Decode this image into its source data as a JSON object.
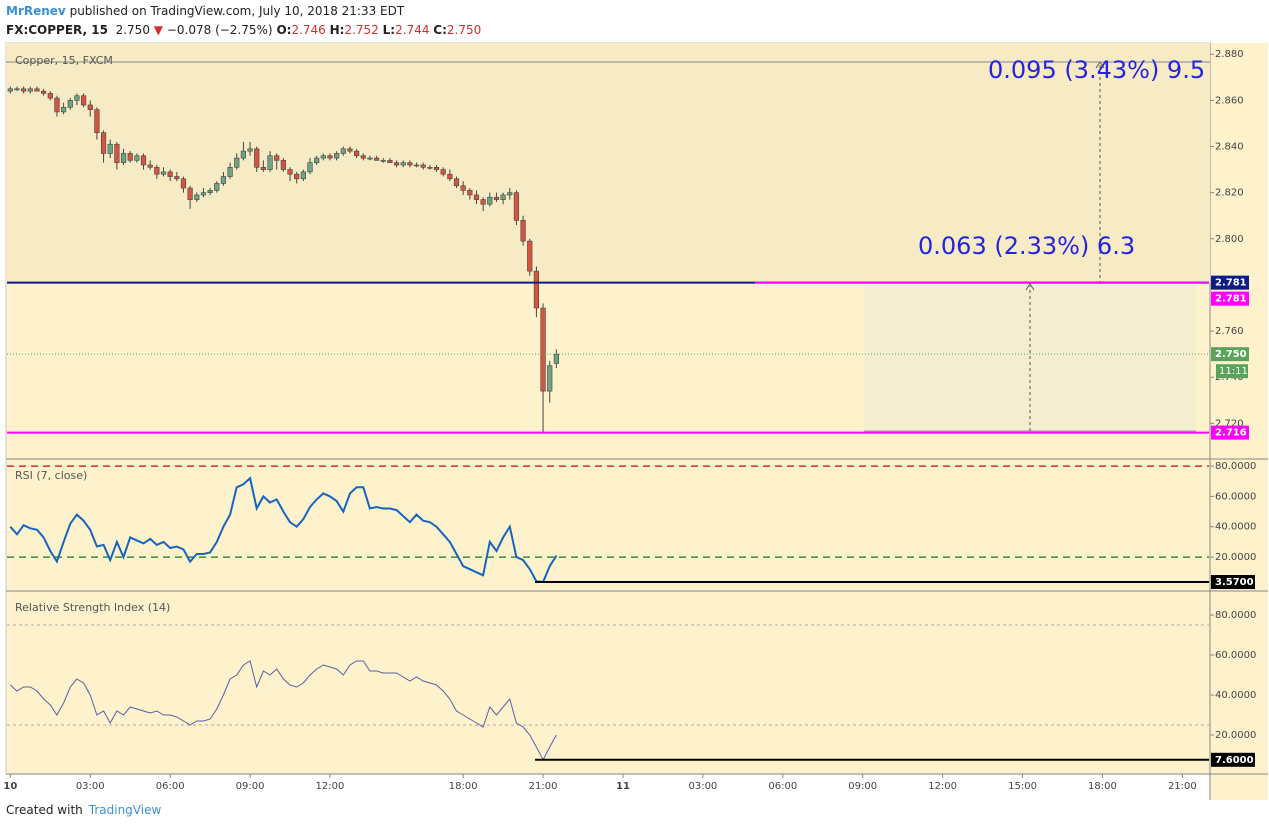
{
  "header": {
    "author": "MrRenev",
    "published": "published on TradingView.com, July 10, 2018 21:33 EDT",
    "symbol": "FX:COPPER, 15",
    "last": "2.750",
    "arrow": "▼",
    "change": "−0.078 (−2.75%)",
    "ohlc": [
      {
        "key": "O:",
        "value": "2.746"
      },
      {
        "key": "H:",
        "value": "2.752"
      },
      {
        "key": "L:",
        "value": "2.744"
      },
      {
        "key": "C:",
        "value": "2.750"
      }
    ]
  },
  "footer": {
    "created": "Created with",
    "brand": "TradingView"
  },
  "chart_data": [
    {
      "type": "candlestick",
      "title": "Copper, 15, FXCM",
      "up_color": "#6ba583",
      "down_color": "#d75442",
      "xlim": [
        -0.5,
        180
      ],
      "ylim": [
        2.705,
        2.884
      ],
      "yticks": [
        {
          "value": 2.72,
          "label": "2.720"
        },
        {
          "value": 2.74,
          "label": "2.740"
        },
        {
          "value": 2.76,
          "label": "2.760"
        },
        {
          "value": 2.78,
          "label": "2.780"
        },
        {
          "value": 2.8,
          "label": "2.800"
        },
        {
          "value": 2.82,
          "label": "2.820"
        },
        {
          "value": 2.84,
          "label": "2.840"
        },
        {
          "value": 2.86,
          "label": "2.860"
        },
        {
          "value": 2.88,
          "label": "2.880"
        }
      ],
      "levels": [
        {
          "value": 2.781,
          "label": "2.781",
          "color": "#0d1a8c"
        },
        {
          "value": 2.781,
          "label": "2.781",
          "color": "#ff00ff"
        },
        {
          "value": 2.75,
          "label": "2.750",
          "color": "#5ba35b"
        },
        {
          "value": 2.716,
          "label": "2.716",
          "color": "#ff00ff"
        }
      ],
      "countdown": "11:11",
      "annotations": [
        "0.063 (2.33%) 6.3",
        "0.095 (3.43%) 9.5"
      ],
      "ohlc": [
        [
          2.864,
          2.866,
          2.863,
          2.865
        ],
        [
          2.865,
          2.866,
          2.864,
          2.865
        ],
        [
          2.865,
          2.866,
          2.863,
          2.864
        ],
        [
          2.864,
          2.866,
          2.863,
          2.865
        ],
        [
          2.865,
          2.866,
          2.864,
          2.864
        ],
        [
          2.864,
          2.865,
          2.862,
          2.863
        ],
        [
          2.863,
          2.864,
          2.86,
          2.861
        ],
        [
          2.861,
          2.862,
          2.853,
          2.855
        ],
        [
          2.855,
          2.859,
          2.854,
          2.857
        ],
        [
          2.857,
          2.861,
          2.856,
          2.86
        ],
        [
          2.86,
          2.863,
          2.858,
          2.862
        ],
        [
          2.862,
          2.863,
          2.857,
          2.858
        ],
        [
          2.858,
          2.86,
          2.853,
          2.856
        ],
        [
          2.856,
          2.857,
          2.843,
          2.846
        ],
        [
          2.846,
          2.847,
          2.833,
          2.837
        ],
        [
          2.837,
          2.843,
          2.835,
          2.841
        ],
        [
          2.841,
          2.842,
          2.83,
          2.833
        ],
        [
          2.833,
          2.839,
          2.832,
          2.837
        ],
        [
          2.837,
          2.838,
          2.833,
          2.834
        ],
        [
          2.834,
          2.837,
          2.833,
          2.836
        ],
        [
          2.836,
          2.837,
          2.83,
          2.832
        ],
        [
          2.832,
          2.834,
          2.83,
          2.831
        ],
        [
          2.831,
          2.832,
          2.826,
          2.828
        ],
        [
          2.828,
          2.831,
          2.827,
          2.829
        ],
        [
          2.829,
          2.83,
          2.825,
          2.827
        ],
        [
          2.827,
          2.829,
          2.825,
          2.826
        ],
        [
          2.826,
          2.827,
          2.82,
          2.822
        ],
        [
          2.822,
          2.823,
          2.813,
          2.817
        ],
        [
          2.817,
          2.82,
          2.816,
          2.819
        ],
        [
          2.819,
          2.822,
          2.818,
          2.82
        ],
        [
          2.82,
          2.822,
          2.819,
          2.821
        ],
        [
          2.821,
          2.825,
          2.82,
          2.824
        ],
        [
          2.824,
          2.829,
          2.823,
          2.827
        ],
        [
          2.827,
          2.833,
          2.826,
          2.831
        ],
        [
          2.831,
          2.837,
          2.83,
          2.835
        ],
        [
          2.835,
          2.842,
          2.834,
          2.838
        ],
        [
          2.838,
          2.842,
          2.836,
          2.839
        ],
        [
          2.839,
          2.84,
          2.829,
          2.831
        ],
        [
          2.831,
          2.834,
          2.829,
          2.83
        ],
        [
          2.83,
          2.838,
          2.829,
          2.836
        ],
        [
          2.836,
          2.837,
          2.83,
          2.834
        ],
        [
          2.834,
          2.835,
          2.829,
          2.83
        ],
        [
          2.83,
          2.831,
          2.825,
          2.828
        ],
        [
          2.828,
          2.829,
          2.824,
          2.826
        ],
        [
          2.826,
          2.83,
          2.825,
          2.829
        ],
        [
          2.829,
          2.835,
          2.828,
          2.833
        ],
        [
          2.833,
          2.836,
          2.832,
          2.835
        ],
        [
          2.835,
          2.837,
          2.834,
          2.836
        ],
        [
          2.836,
          2.837,
          2.834,
          2.835
        ],
        [
          2.835,
          2.838,
          2.834,
          2.837
        ],
        [
          2.837,
          2.84,
          2.836,
          2.839
        ],
        [
          2.839,
          2.84,
          2.837,
          2.838
        ],
        [
          2.838,
          2.839,
          2.835,
          2.836
        ],
        [
          2.836,
          2.837,
          2.834,
          2.835
        ],
        [
          2.835,
          2.836,
          2.834,
          2.835
        ],
        [
          2.835,
          2.836,
          2.834,
          2.834
        ],
        [
          2.834,
          2.835,
          2.833,
          2.834
        ],
        [
          2.834,
          2.835,
          2.833,
          2.833
        ],
        [
          2.833,
          2.834,
          2.831,
          2.832
        ],
        [
          2.832,
          2.834,
          2.831,
          2.833
        ],
        [
          2.833,
          2.834,
          2.831,
          2.832
        ],
        [
          2.832,
          2.833,
          2.831,
          2.832
        ],
        [
          2.832,
          2.833,
          2.83,
          2.831
        ],
        [
          2.831,
          2.832,
          2.83,
          2.831
        ],
        [
          2.831,
          2.832,
          2.829,
          2.83
        ],
        [
          2.83,
          2.831,
          2.827,
          2.828
        ],
        [
          2.828,
          2.83,
          2.825,
          2.826
        ],
        [
          2.826,
          2.827,
          2.822,
          2.823
        ],
        [
          2.823,
          2.825,
          2.819,
          2.821
        ],
        [
          2.821,
          2.822,
          2.817,
          2.819
        ],
        [
          2.819,
          2.821,
          2.815,
          2.817
        ],
        [
          2.817,
          2.818,
          2.812,
          2.815
        ],
        [
          2.815,
          2.82,
          2.814,
          2.818
        ],
        [
          2.818,
          2.82,
          2.816,
          2.817
        ],
        [
          2.817,
          2.82,
          2.815,
          2.819
        ],
        [
          2.819,
          2.822,
          2.817,
          2.82
        ],
        [
          2.82,
          2.821,
          2.806,
          2.808
        ],
        [
          2.808,
          2.81,
          2.797,
          2.799
        ],
        [
          2.799,
          2.8,
          2.784,
          2.786
        ],
        [
          2.786,
          2.788,
          2.766,
          2.77
        ],
        [
          2.77,
          2.772,
          2.716,
          2.734
        ],
        [
          2.734,
          2.747,
          2.729,
          2.745
        ],
        [
          2.746,
          2.752,
          2.744,
          2.75
        ]
      ]
    },
    {
      "type": "line",
      "title": "RSI (7, close)",
      "color": "#1565c0",
      "xlim": [
        -0.5,
        180
      ],
      "ylim": [
        -1.7,
        84
      ],
      "yticks": [
        {
          "value": 20,
          "label": "20.0000"
        },
        {
          "value": 40,
          "label": "40.0000"
        },
        {
          "value": 60,
          "label": "60.0000"
        },
        {
          "value": 80,
          "label": "80.0000"
        }
      ],
      "bands": [
        {
          "value": 80,
          "color": "#d32f2f"
        },
        {
          "value": 20,
          "color": "#388e3c"
        }
      ],
      "marker": {
        "value": 3.57,
        "label": "3.5700"
      },
      "values": [
        40,
        35,
        41,
        39,
        38,
        33,
        24,
        17,
        30,
        42,
        48,
        44,
        38,
        27,
        28,
        18,
        30,
        20,
        33,
        31,
        29,
        32,
        28,
        30,
        26,
        27,
        25,
        17,
        22,
        22,
        23,
        30,
        40,
        48,
        66,
        68,
        72,
        52,
        60,
        56,
        58,
        50,
        43,
        40,
        45,
        53,
        58,
        62,
        60,
        57,
        50,
        62,
        66,
        66,
        52,
        53,
        52,
        52,
        51,
        47,
        43,
        48,
        44,
        43,
        40,
        35,
        30,
        22,
        14,
        12,
        10,
        8,
        30,
        24,
        33,
        40,
        20,
        18,
        12,
        4,
        3.57,
        14,
        21
      ]
    },
    {
      "type": "line",
      "title": "Relative Strength Index (14)",
      "color": "#5b5fa8",
      "xlim": [
        -0.5,
        180
      ],
      "ylim": [
        1,
        91.5
      ],
      "yticks": [
        {
          "value": 20,
          "label": "20.0000"
        },
        {
          "value": 40,
          "label": "40.0000"
        },
        {
          "value": 60,
          "label": "60.0000"
        },
        {
          "value": 80,
          "label": "80.0000"
        }
      ],
      "bands": [
        {
          "value": 75,
          "color": "#aaaaaa"
        },
        {
          "value": 25,
          "color": "#aaaaaa"
        }
      ],
      "marker": {
        "value": 7.6,
        "label": "7.6000"
      },
      "values": [
        45,
        42,
        44,
        44,
        42,
        38,
        35,
        30,
        36,
        44,
        48,
        46,
        40,
        30,
        32,
        26,
        32,
        30,
        34,
        33,
        32,
        31,
        32,
        30,
        30,
        29,
        27,
        25,
        27,
        27,
        28,
        33,
        40,
        48,
        50,
        55,
        57,
        44,
        52,
        50,
        53,
        48,
        45,
        44,
        46,
        50,
        53,
        55,
        54,
        53,
        50,
        55,
        57,
        57,
        52,
        52,
        51,
        51,
        51,
        49,
        47,
        49,
        47,
        46,
        45,
        42,
        38,
        32,
        30,
        28,
        26,
        24,
        34,
        30,
        34,
        38,
        26,
        24,
        20,
        14,
        7.6,
        14,
        20
      ],
      "xticks": [
        {
          "value": 0,
          "label": "10"
        },
        {
          "value": 12,
          "label": "03:00"
        },
        {
          "value": 24,
          "label": "06:00"
        },
        {
          "value": 36,
          "label": "09:00"
        },
        {
          "value": 48,
          "label": "12:00"
        },
        {
          "value": 68,
          "label": "18:00"
        },
        {
          "value": 80,
          "label": "21:00"
        },
        {
          "value": 92,
          "label": "11"
        },
        {
          "value": 104,
          "label": "03:00"
        },
        {
          "value": 116,
          "label": "06:00"
        },
        {
          "value": 128,
          "label": "09:00"
        },
        {
          "value": 140,
          "label": "12:00"
        },
        {
          "value": 152,
          "label": "15:00"
        },
        {
          "value": 164,
          "label": "18:00"
        },
        {
          "value": 176,
          "label": "21:00"
        }
      ]
    }
  ]
}
